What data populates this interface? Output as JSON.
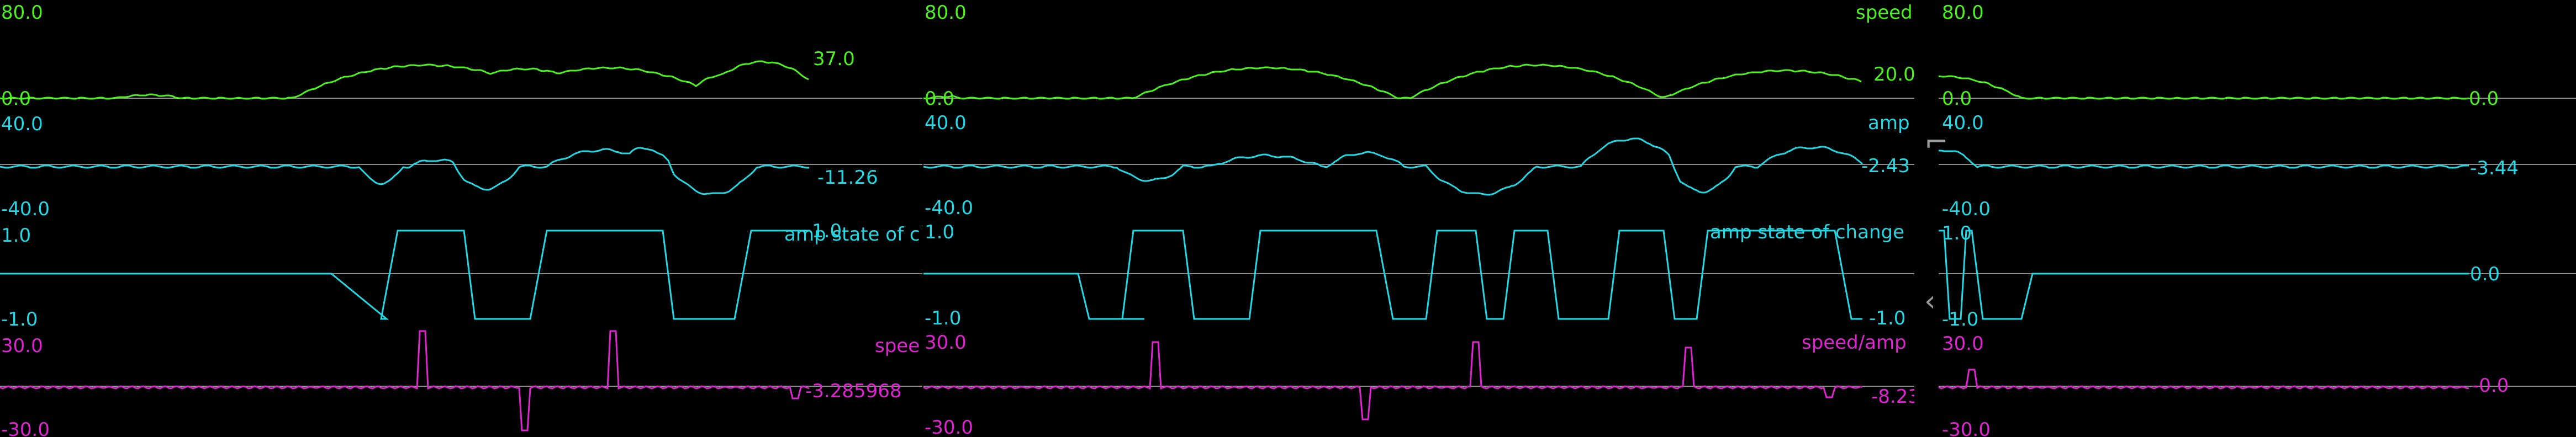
{
  "colors": {
    "speed": "#4cf21e",
    "amp": "#22d8e4",
    "state": "#22d8e4",
    "ratio": "#e024d2",
    "baseline": "#8a8a8a",
    "background": "#000000"
  },
  "panels": [
    {
      "id": "p1",
      "speed": {
        "max": "80.0",
        "min": "0.0",
        "current": "37.0",
        "name": ""
      },
      "amp": {
        "max": "40.0",
        "min": "-40.0",
        "current": "-11.26",
        "name": ""
      },
      "state": {
        "max": "1.0",
        "min": "-1.0",
        "current": "1.0",
        "name": "amp state of c`"
      },
      "ratio": {
        "max": "30.0",
        "min": "-30.0",
        "current": "-3.285968",
        "name": "spee"
      }
    },
    {
      "id": "p2",
      "speed": {
        "max": "80.0",
        "min": "0.0",
        "current": "20.0",
        "name": "speed"
      },
      "amp": {
        "max": "40.0",
        "min": "-40.0",
        "current": "-2.43",
        "name": "amp"
      },
      "state": {
        "max": "1.0",
        "min": "-1.0",
        "current": "-1.0",
        "name": "amp state of change"
      },
      "ratio": {
        "max": "30.0",
        "min": "-30.0",
        "current": "-8.23",
        "name": "speed/amp"
      }
    },
    {
      "id": "p3",
      "speed": {
        "max": "80.0",
        "min": "0.0",
        "current": "0.0",
        "name": ""
      },
      "amp": {
        "max": "40.0",
        "min": "-40.0",
        "current": "-3.44",
        "name": ""
      },
      "state": {
        "max": "1.0",
        "min": "-1.0",
        "current": "0.0",
        "name": ""
      },
      "ratio": {
        "max": "30.0",
        "min": "-30.0",
        "current": "-0.0",
        "name": ""
      }
    }
  ],
  "nav": {
    "collapse_glyph": "⌐",
    "back_glyph": "‹",
    "collapse_icon": "bracket-icon",
    "back_icon": "chevron-left-icon"
  }
}
